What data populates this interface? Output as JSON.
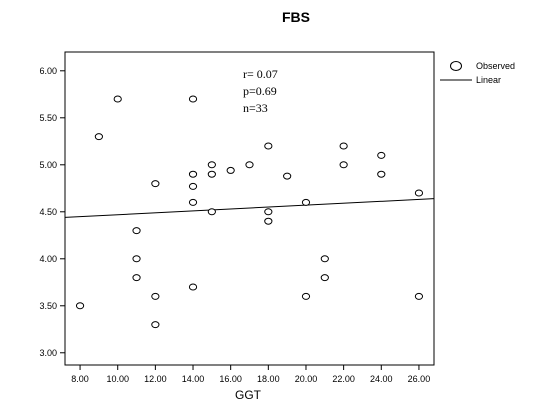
{
  "chart_data": {
    "type": "scatter",
    "title": "FBS",
    "xlabel": "GGT",
    "ylabel": "",
    "xlim": [
      7.2,
      26.8
    ],
    "ylim": [
      2.87,
      6.2
    ],
    "x_ticks": [
      "8.00",
      "10.00",
      "12.00",
      "14.00",
      "16.00",
      "18.00",
      "20.00",
      "22.00",
      "24.00",
      "26.00"
    ],
    "y_ticks": [
      "3.00",
      "3.50",
      "4.00",
      "4.50",
      "5.00",
      "5.50",
      "6.00"
    ],
    "grid": false,
    "legend_position": "top-right",
    "series": [
      {
        "name": "Observed",
        "marker": "open-circle",
        "points": [
          [
            8,
            3.5
          ],
          [
            9,
            5.3
          ],
          [
            10,
            5.7
          ],
          [
            11,
            4.3
          ],
          [
            11,
            4.0
          ],
          [
            11,
            3.8
          ],
          [
            12,
            4.8
          ],
          [
            12,
            3.6
          ],
          [
            12,
            3.3
          ],
          [
            14,
            5.7
          ],
          [
            14,
            4.9
          ],
          [
            14,
            4.77
          ],
          [
            14,
            4.6
          ],
          [
            14,
            3.7
          ],
          [
            15,
            5.0
          ],
          [
            15,
            4.9
          ],
          [
            15,
            4.5
          ],
          [
            16,
            4.94
          ],
          [
            17,
            5.0
          ],
          [
            18,
            5.2
          ],
          [
            18,
            4.5
          ],
          [
            18,
            4.4
          ],
          [
            19,
            4.88
          ],
          [
            20,
            4.6
          ],
          [
            20,
            3.6
          ],
          [
            21,
            4.0
          ],
          [
            21,
            3.8
          ],
          [
            22,
            5.2
          ],
          [
            22,
            5.0
          ],
          [
            24,
            5.1
          ],
          [
            24,
            4.9
          ],
          [
            26,
            4.7
          ],
          [
            26,
            3.6
          ]
        ]
      },
      {
        "name": "Linear",
        "type": "line",
        "points": [
          [
            7.2,
            4.44
          ],
          [
            26.8,
            4.64
          ]
        ]
      }
    ],
    "annotations": [
      "r= 0.07",
      "p=0.69",
      "n=33"
    ]
  }
}
